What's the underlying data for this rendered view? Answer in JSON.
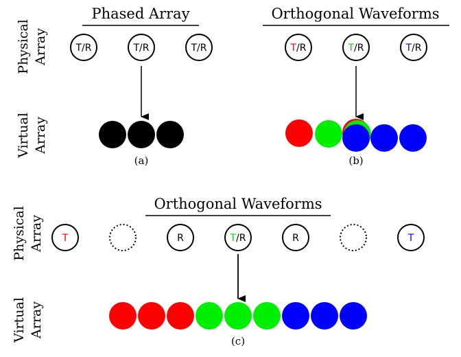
{
  "panel_a": {
    "title": "Phased Array",
    "caption": "(a)",
    "elements": [
      {
        "parts": [
          {
            "text": "T/R",
            "color": "#000000"
          }
        ]
      },
      {
        "parts": [
          {
            "text": "T/R",
            "color": "#000000"
          }
        ]
      },
      {
        "parts": [
          {
            "text": "T/R",
            "color": "#000000"
          }
        ]
      }
    ],
    "virtual": [
      "#000000",
      "#000000",
      "#000000"
    ]
  },
  "panel_b": {
    "title": "Orthogonal Waveforms",
    "caption": "(b)",
    "elements": [
      {
        "parts": [
          {
            "text": "T",
            "color": "#ff0000"
          },
          {
            "text": "/R",
            "color": "#000000"
          }
        ]
      },
      {
        "parts": [
          {
            "text": "T",
            "color": "#00e000"
          },
          {
            "text": "/R",
            "color": "#000000"
          }
        ]
      },
      {
        "parts": [
          {
            "text": "T",
            "color": "#0000ff"
          },
          {
            "text": "/R",
            "color": "#000000"
          }
        ]
      }
    ],
    "virtual": [
      "#ff0000",
      "#00ee00",
      "#ff0000",
      "#00ee00",
      "#0000ff",
      "#0000ff",
      "#0000ff"
    ]
  },
  "panel_c": {
    "title": "Orthogonal Waveforms",
    "caption": "(c)",
    "elements": [
      {
        "parts": [
          {
            "text": "T",
            "color": "#ff0000"
          }
        ],
        "dashed": false
      },
      {
        "parts": [],
        "dashed": true
      },
      {
        "parts": [
          {
            "text": "R",
            "color": "#000000"
          }
        ],
        "dashed": false
      },
      {
        "parts": [
          {
            "text": "T",
            "color": "#00e000"
          },
          {
            "text": "/R",
            "color": "#000000"
          }
        ],
        "dashed": false
      },
      {
        "parts": [
          {
            "text": "R",
            "color": "#000000"
          }
        ],
        "dashed": false
      },
      {
        "parts": [],
        "dashed": true
      },
      {
        "parts": [
          {
            "text": "T",
            "color": "#0000ff"
          }
        ],
        "dashed": false
      }
    ],
    "virtual": [
      "#ff0000",
      "#ff0000",
      "#ff0000",
      "#00ee00",
      "#00ee00",
      "#00ee00",
      "#0000ff",
      "#0000ff",
      "#0000ff"
    ]
  },
  "labels": {
    "physical": "Physical",
    "virtual": "Virtual",
    "array": "Array"
  }
}
